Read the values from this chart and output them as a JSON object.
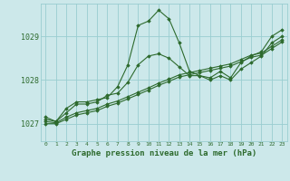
{
  "title": "Graphe pression niveau de la mer (hPa)",
  "bg_color": "#cce8ea",
  "grid_color": "#99cdd0",
  "line_color": "#2d6a2d",
  "xlim": [
    -0.5,
    23.5
  ],
  "ylim": [
    1026.6,
    1029.75
  ],
  "yticks": [
    1027,
    1028,
    1029
  ],
  "xticks": [
    0,
    1,
    2,
    3,
    4,
    5,
    6,
    7,
    8,
    9,
    10,
    11,
    12,
    13,
    14,
    15,
    16,
    17,
    18,
    19,
    20,
    21,
    22,
    23
  ],
  "series1": [
    1027.15,
    1027.05,
    1027.35,
    1027.5,
    1027.5,
    1027.55,
    1027.6,
    1027.85,
    1028.35,
    1029.25,
    1029.35,
    1029.6,
    1029.4,
    1028.85,
    1028.2,
    1028.1,
    1028.05,
    1028.2,
    1028.05,
    1028.4,
    1028.55,
    1028.65,
    1029.0,
    1029.15
  ],
  "series2": [
    1027.1,
    1027.05,
    1027.25,
    1027.45,
    1027.45,
    1027.5,
    1027.65,
    1027.7,
    1027.95,
    1028.35,
    1028.55,
    1028.6,
    1028.5,
    1028.3,
    1028.1,
    1028.1,
    1028.0,
    1028.1,
    1028.0,
    1028.25,
    1028.4,
    1028.55,
    1028.85,
    1029.0
  ],
  "series3": [
    1027.05,
    1027.02,
    1027.15,
    1027.25,
    1027.3,
    1027.35,
    1027.45,
    1027.52,
    1027.62,
    1027.72,
    1027.82,
    1027.93,
    1028.02,
    1028.12,
    1028.17,
    1028.22,
    1028.27,
    1028.32,
    1028.37,
    1028.47,
    1028.57,
    1028.62,
    1028.77,
    1028.92
  ],
  "series4": [
    1027.0,
    1027.0,
    1027.1,
    1027.2,
    1027.25,
    1027.3,
    1027.4,
    1027.47,
    1027.57,
    1027.67,
    1027.77,
    1027.88,
    1027.97,
    1028.07,
    1028.12,
    1028.17,
    1028.22,
    1028.27,
    1028.32,
    1028.42,
    1028.52,
    1028.57,
    1028.72,
    1028.87
  ]
}
